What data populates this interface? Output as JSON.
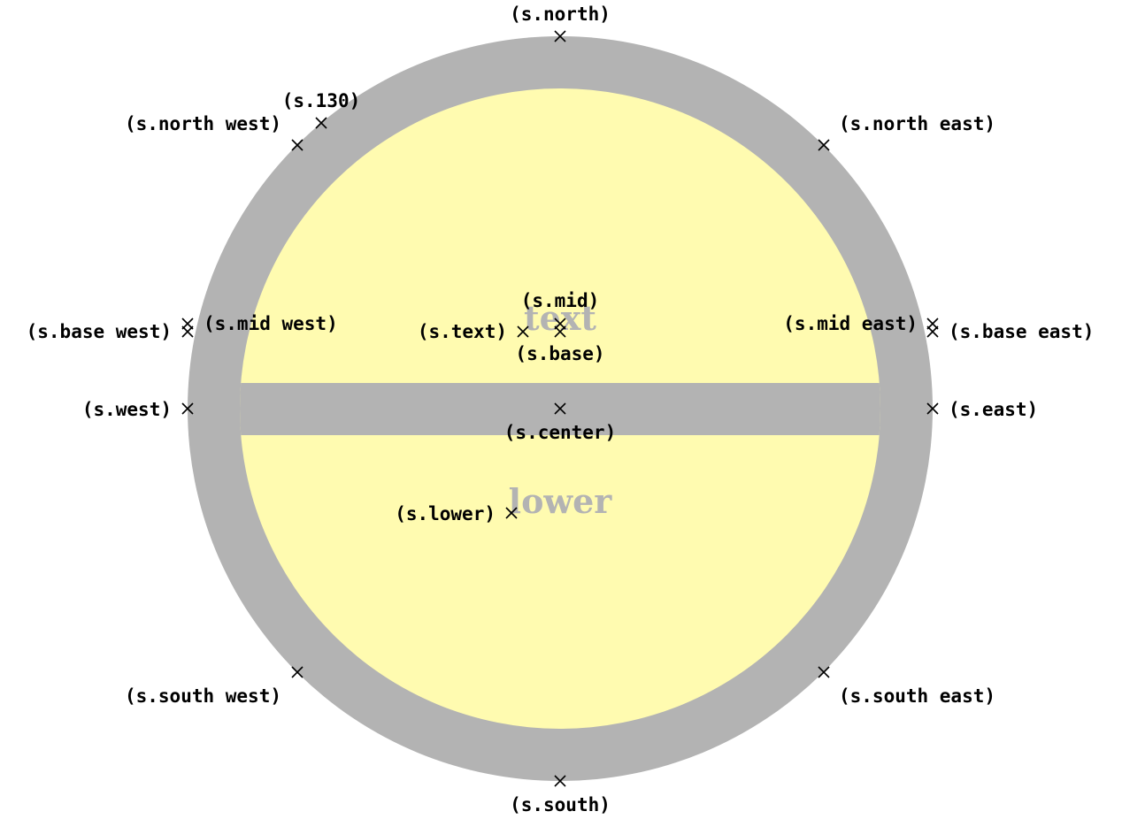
{
  "colors": {
    "ring": "#b3b3b3",
    "fill": "#fffbb0",
    "marker": "#000000",
    "part_text": "#b3b3b3"
  },
  "parts": {
    "upper": "text",
    "lower": "lower"
  },
  "anchors": {
    "north": "(s.north)",
    "north_130": "(s.130)",
    "north_west": "(s.north west)",
    "north_east": "(s.north east)",
    "mid": "(s.mid)",
    "base_west": "(s.base west)",
    "mid_west": "(s.mid west)",
    "text": "(s.text)",
    "base": "(s.base)",
    "mid_east": "(s.mid east)",
    "base_east": "(s.base east)",
    "west": "(s.west)",
    "center": "(s.center)",
    "east": "(s.east)",
    "lower": "(s.lower)",
    "south_west": "(s.south west)",
    "south_east": "(s.south east)",
    "south": "(s.south)"
  }
}
